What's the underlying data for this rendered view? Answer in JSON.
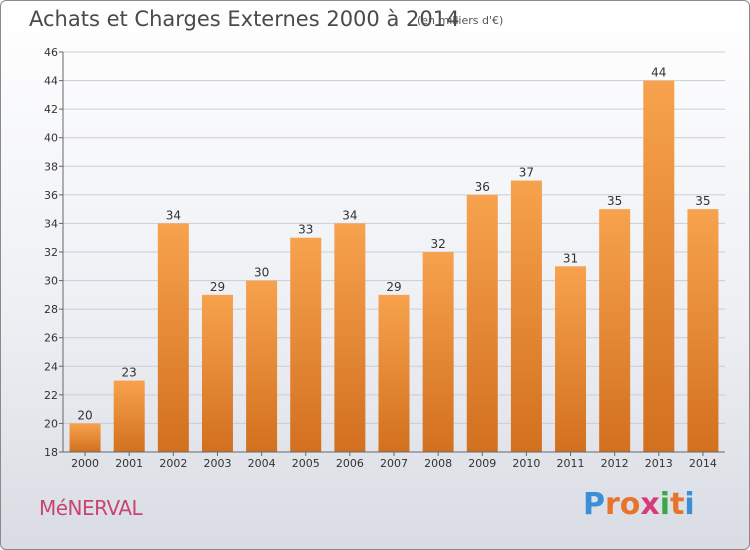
{
  "title": "Achats et Charges Externes 2000 à 2014",
  "subtitle": "(en milliers d'€)",
  "municipality": "MéNERVAL",
  "brand": {
    "letters": [
      "P",
      "r",
      "o",
      "x",
      "i",
      "t",
      "i"
    ],
    "colors": [
      "#3b8fd6",
      "#e8732a",
      "#e8732a",
      "#d93a7a",
      "#3aa84a",
      "#e8732a",
      "#3b8fd6"
    ]
  },
  "colors": {
    "bar_top": "#f7a24e",
    "bar_bottom": "#d2701f",
    "grid": "#c9cdd6",
    "axis_text": "#333333"
  },
  "chart_data": {
    "type": "bar",
    "title": "Achats et Charges Externes 2000 à 2014",
    "subtitle": "(en milliers d'€)",
    "categories": [
      "2000",
      "2001",
      "2002",
      "2003",
      "2004",
      "2005",
      "2006",
      "2007",
      "2008",
      "2009",
      "2010",
      "2011",
      "2012",
      "2013",
      "2014"
    ],
    "values": [
      20,
      23,
      34,
      29,
      30,
      33,
      34,
      29,
      32,
      36,
      37,
      31,
      35,
      44,
      35
    ],
    "ylim": [
      18,
      46
    ],
    "yticks": [
      18,
      20,
      22,
      24,
      26,
      28,
      30,
      32,
      34,
      36,
      38,
      40,
      42,
      44,
      46
    ],
    "grid": true,
    "data_labels": true
  }
}
